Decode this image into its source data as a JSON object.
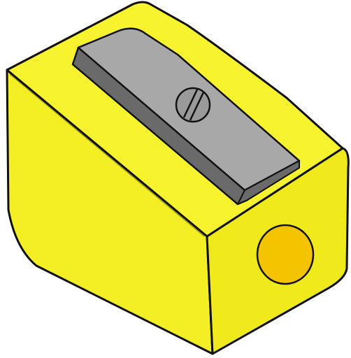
{
  "illustration": {
    "subject": "pencil-sharpener",
    "colors": {
      "body_front": "#f4ef24",
      "body_top": "#f7f32e",
      "body_side": "#f0e91c",
      "body_shadow": "#e6dc12",
      "outline": "#111111",
      "blade_top": "#a8a8a8",
      "blade_edge": "#6a6a6a",
      "screw": "#9a9a9a",
      "hole": "#f5c400"
    }
  }
}
